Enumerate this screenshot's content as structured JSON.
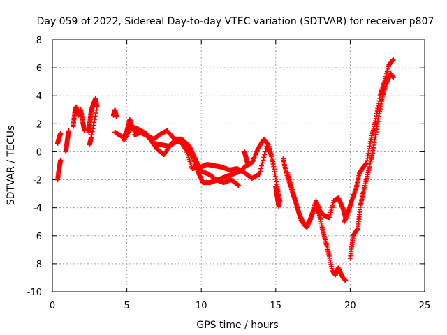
{
  "chart_data": {
    "type": "scatter",
    "title": "Day 059 of 2022, Sidereal Day-to-day VTEC variation (SDTVAR) for receiver p807",
    "xlabel": "GPS time / hours",
    "ylabel": "SDTVAR / TECUs",
    "xlim": [
      0,
      25
    ],
    "ylim": [
      -10,
      8
    ],
    "xticks": [
      "0",
      "5",
      "10",
      "15",
      "20",
      "25"
    ],
    "yticks": [
      "-10",
      "-8",
      "-6",
      "-4",
      "-2",
      "0",
      "2",
      "4",
      "6",
      "8"
    ],
    "grid": true,
    "marker": "+",
    "series": [
      {
        "name": "p807",
        "color": "#ff0000",
        "segments": [
          [
            [
              0.35,
              -2.0
            ],
            [
              0.45,
              -1.2
            ],
            [
              0.55,
              -0.6
            ]
          ],
          [
            [
              0.35,
              0.6
            ],
            [
              0.45,
              1.0
            ],
            [
              0.55,
              1.3
            ]
          ],
          [
            [
              0.9,
              0.0
            ],
            [
              1.0,
              0.8
            ],
            [
              1.1,
              1.5
            ]
          ],
          [
            [
              1.4,
              1.8
            ],
            [
              1.5,
              2.8
            ],
            [
              1.6,
              3.2
            ],
            [
              1.75,
              2.6
            ],
            [
              1.9,
              3.0
            ],
            [
              2.05,
              2.1
            ],
            [
              2.15,
              1.5
            ]
          ],
          [
            [
              2.45,
              1.4
            ],
            [
              2.5,
              2.0
            ],
            [
              2.6,
              2.9
            ],
            [
              2.75,
              3.4
            ],
            [
              2.9,
              3.8
            ],
            [
              3.0,
              3.2
            ],
            [
              2.6,
              1.0
            ],
            [
              2.5,
              0.5
            ]
          ],
          [
            [
              4.1,
              2.6
            ],
            [
              4.2,
              3.0
            ],
            [
              4.3,
              2.5
            ]
          ],
          [
            [
              4.2,
              1.4
            ],
            [
              4.5,
              1.2
            ],
            [
              4.8,
              1.0
            ],
            [
              5.0,
              1.5
            ],
            [
              5.2,
              2.3
            ],
            [
              5.4,
              1.6
            ],
            [
              5.8,
              1.4
            ],
            [
              6.3,
              1.2
            ],
            [
              6.8,
              0.9
            ],
            [
              7.3,
              1.3
            ],
            [
              7.7,
              1.5
            ],
            [
              8.2,
              0.9
            ],
            [
              8.7,
              0.9
            ],
            [
              9.2,
              0.4
            ],
            [
              9.5,
              -0.3
            ],
            [
              9.8,
              -1.0
            ],
            [
              10.0,
              -1.4
            ],
            [
              10.5,
              -1.6
            ],
            [
              11.0,
              -2.0
            ],
            [
              11.5,
              -2.2
            ],
            [
              12.0,
              -2.0
            ],
            [
              12.5,
              -2.4
            ]
          ],
          [
            [
              4.8,
              0.8
            ],
            [
              5.3,
              1.8
            ],
            [
              5.8,
              1.6
            ],
            [
              6.3,
              1.3
            ],
            [
              6.8,
              0.6
            ],
            [
              7.3,
              0.5
            ],
            [
              7.8,
              0.4
            ],
            [
              8.3,
              0.7
            ],
            [
              8.8,
              0.7
            ],
            [
              9.1,
              0.2
            ],
            [
              9.5,
              -0.5
            ],
            [
              9.8,
              -1.5
            ],
            [
              10.1,
              -2.2
            ],
            [
              10.6,
              -2.2
            ],
            [
              11.1,
              -2.0
            ],
            [
              11.6,
              -1.8
            ],
            [
              12.1,
              -1.6
            ],
            [
              12.6,
              -1.4
            ],
            [
              13.0,
              -1.0
            ],
            [
              13.4,
              -0.8
            ],
            [
              13.8,
              0.2
            ],
            [
              14.2,
              0.9
            ],
            [
              14.5,
              0.5
            ],
            [
              14.8,
              -0.7
            ],
            [
              15.1,
              -2.5
            ],
            [
              15.3,
              -3.6
            ]
          ],
          [
            [
              5.5,
              1.2
            ],
            [
              6.0,
              1.4
            ],
            [
              6.5,
              1.0
            ],
            [
              7.0,
              0.2
            ],
            [
              7.5,
              -0.2
            ],
            [
              8.0,
              0.6
            ],
            [
              8.5,
              0.9
            ],
            [
              9.0,
              0.1
            ],
            [
              9.4,
              -1.2
            ],
            [
              9.9,
              -1.1
            ],
            [
              10.4,
              -0.9
            ],
            [
              10.9,
              -1.0
            ],
            [
              11.4,
              -1.1
            ],
            [
              11.9,
              -1.3
            ],
            [
              12.4,
              -1.2
            ],
            [
              12.9,
              -1.5
            ],
            [
              13.4,
              -1.9
            ],
            [
              13.9,
              -1.6
            ],
            [
              14.4,
              0.4
            ],
            [
              14.7,
              -0.2
            ]
          ],
          [
            [
              12.9,
              0.0
            ],
            [
              13.0,
              -0.4
            ],
            [
              13.1,
              -0.8
            ]
          ],
          [
            [
              15.0,
              -2.5
            ],
            [
              15.1,
              -3.2
            ],
            [
              15.2,
              -3.9
            ]
          ],
          [
            [
              15.5,
              -0.5
            ],
            [
              15.7,
              -1.5
            ],
            [
              16.0,
              -2.5
            ],
            [
              16.3,
              -3.5
            ],
            [
              16.6,
              -4.5
            ],
            [
              16.9,
              -5.2
            ],
            [
              17.1,
              -5.4
            ],
            [
              17.4,
              -4.6
            ],
            [
              17.7,
              -3.5
            ],
            [
              18.0,
              -4.3
            ],
            [
              18.3,
              -4.6
            ],
            [
              18.6,
              -4.7
            ],
            [
              18.9,
              -3.5
            ],
            [
              19.2,
              -3.3
            ],
            [
              19.5,
              -4.0
            ],
            [
              19.7,
              -4.8
            ]
          ],
          [
            [
              15.8,
              -1.5
            ],
            [
              16.1,
              -2.7
            ],
            [
              16.4,
              -3.8
            ],
            [
              16.7,
              -4.9
            ],
            [
              17.0,
              -5.3
            ],
            [
              17.3,
              -4.9
            ],
            [
              17.6,
              -4.0
            ],
            [
              17.9,
              -4.4
            ],
            [
              18.2,
              -5.8
            ],
            [
              18.5,
              -7.0
            ],
            [
              18.8,
              -8.5
            ],
            [
              19.0,
              -8.8
            ],
            [
              19.2,
              -8.3
            ],
            [
              19.5,
              -9.0
            ],
            [
              19.7,
              -9.2
            ]
          ],
          [
            [
              19.6,
              -5.0
            ],
            [
              19.9,
              -4.2
            ],
            [
              20.1,
              -3.5
            ],
            [
              20.4,
              -2.6
            ],
            [
              20.6,
              -1.6
            ],
            [
              20.8,
              -1.2
            ],
            [
              21.1,
              -0.8
            ],
            [
              21.4,
              0.9
            ],
            [
              21.7,
              2.2
            ],
            [
              22.0,
              4.0
            ],
            [
              22.3,
              5.0
            ],
            [
              22.6,
              6.2
            ],
            [
              22.9,
              6.6
            ]
          ],
          [
            [
              20.0,
              -7.6
            ],
            [
              20.2,
              -6.0
            ],
            [
              20.5,
              -5.5
            ],
            [
              20.7,
              -3.8
            ],
            [
              20.9,
              -2.8
            ],
            [
              21.2,
              -1.5
            ],
            [
              21.5,
              -0.1
            ],
            [
              21.8,
              1.8
            ],
            [
              22.1,
              3.6
            ],
            [
              22.4,
              4.8
            ],
            [
              22.7,
              5.6
            ],
            [
              22.9,
              5.3
            ]
          ]
        ]
      }
    ]
  }
}
